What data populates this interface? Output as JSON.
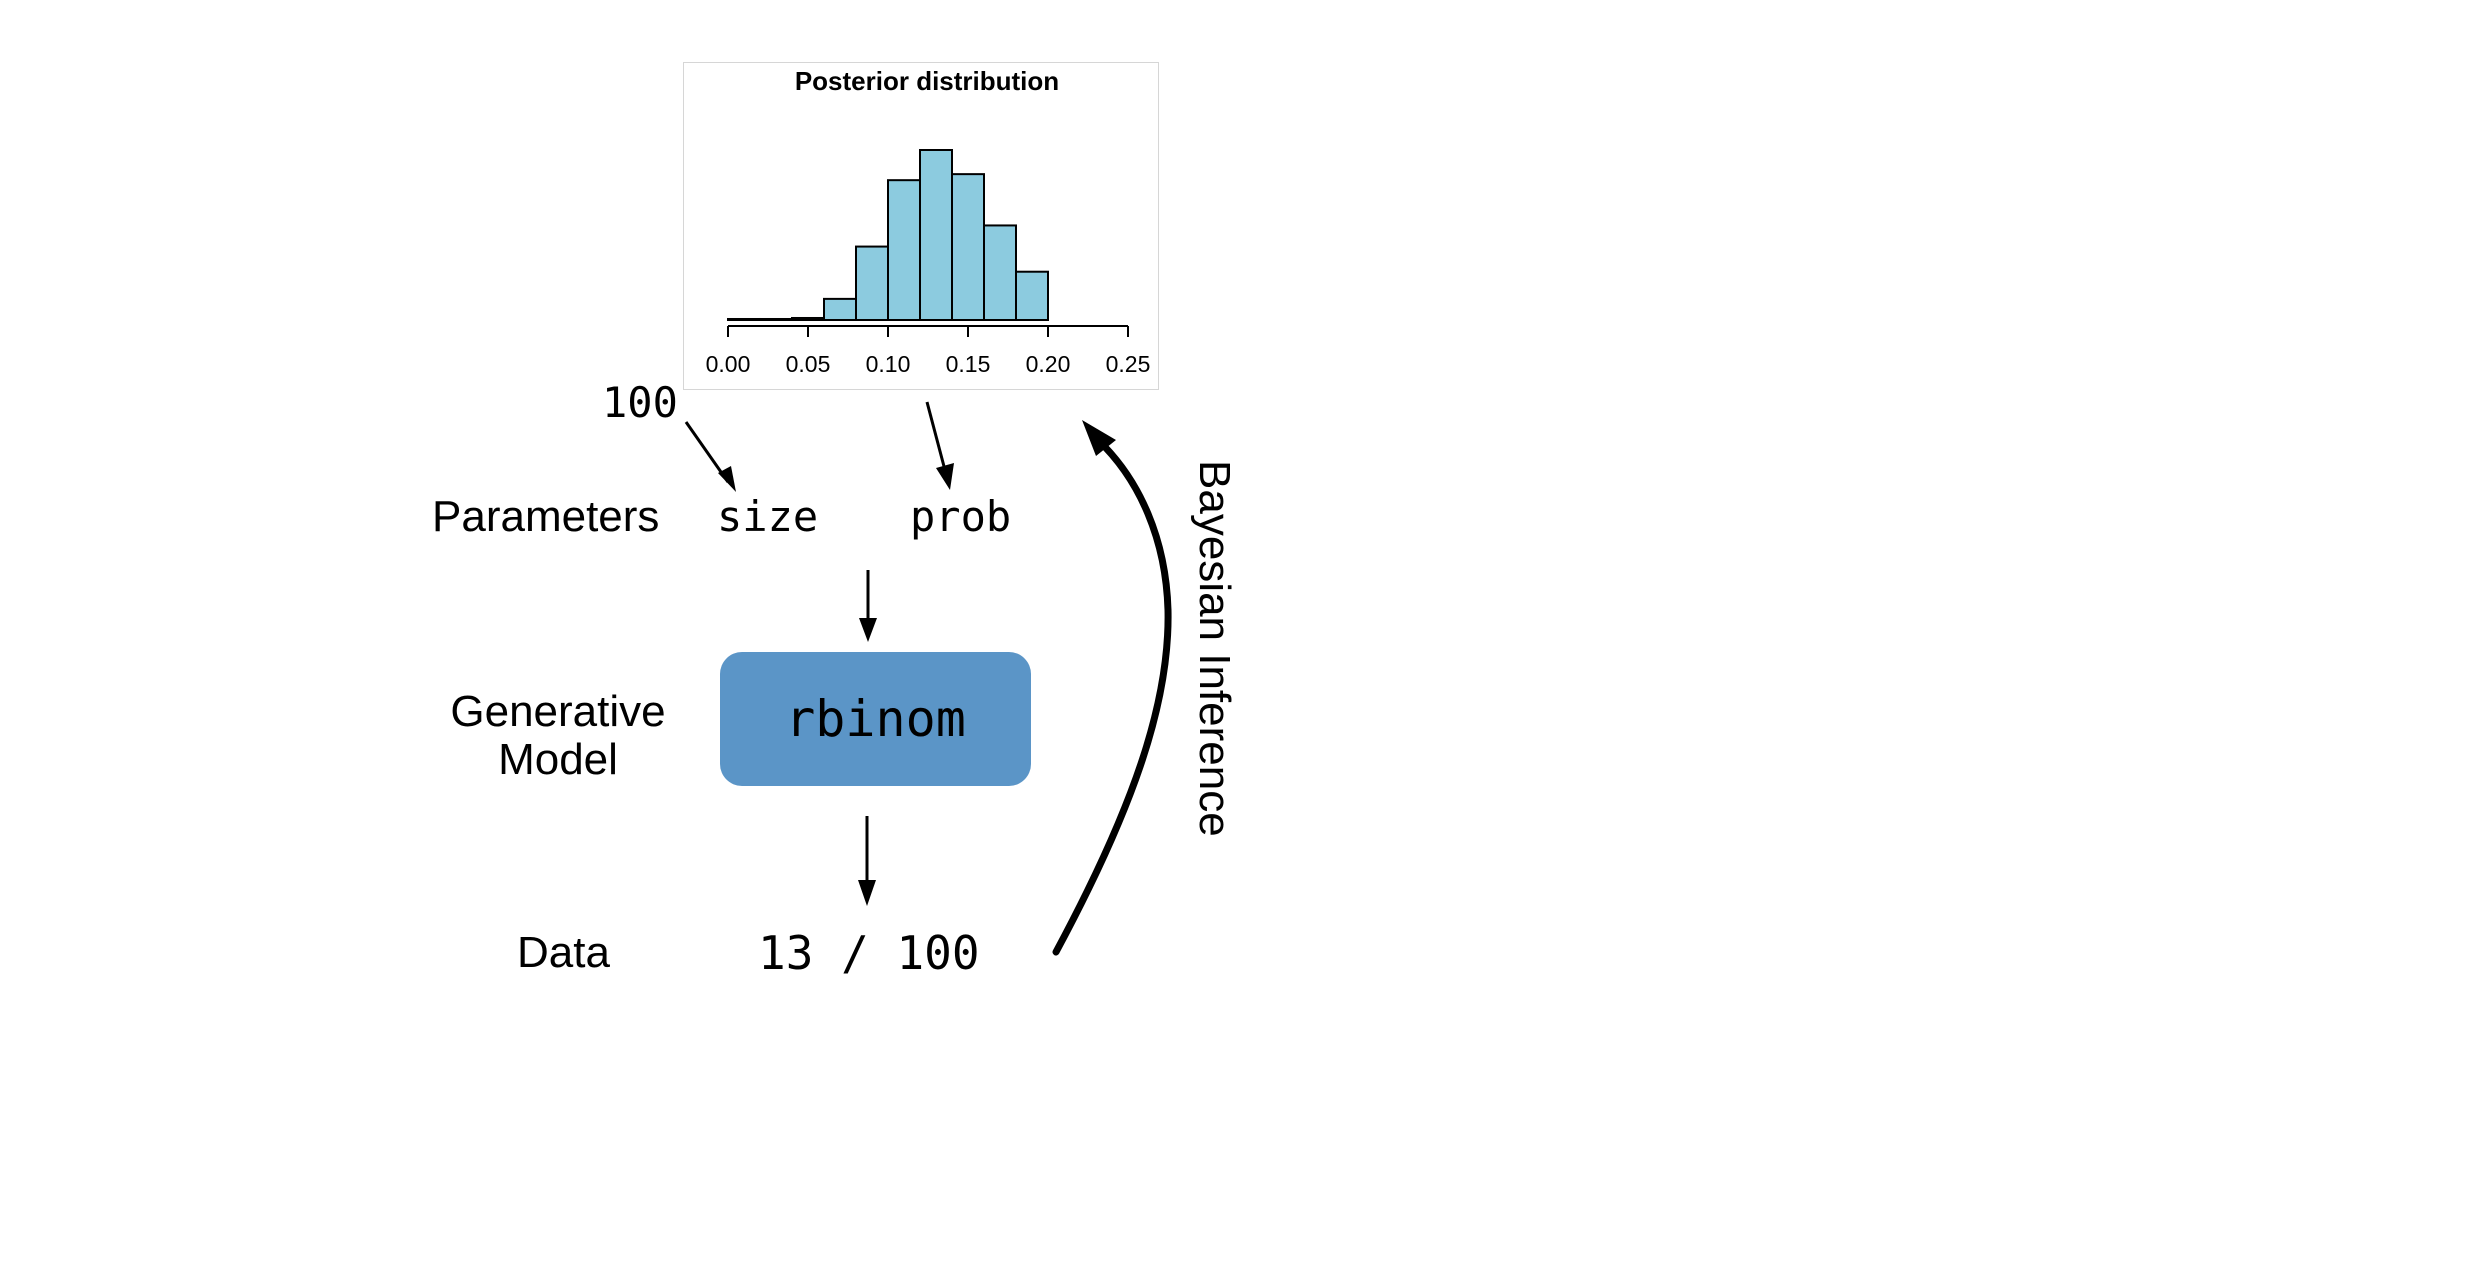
{
  "chart_data": {
    "type": "bar",
    "title": "Posterior distribution",
    "xlabel": "",
    "ylabel": "",
    "xlim": [
      0.0,
      0.25
    ],
    "x_ticks": [
      "0.00",
      "0.05",
      "0.10",
      "0.15",
      "0.20",
      "0.25"
    ],
    "bins": [
      {
        "x0": 0.0,
        "x1": 0.02,
        "count": 1
      },
      {
        "x0": 0.02,
        "x1": 0.04,
        "count": 1
      },
      {
        "x0": 0.04,
        "x1": 0.06,
        "count": 2
      },
      {
        "x0": 0.06,
        "x1": 0.08,
        "count": 21
      },
      {
        "x0": 0.08,
        "x1": 0.1,
        "count": 73
      },
      {
        "x0": 0.1,
        "x1": 0.12,
        "count": 139
      },
      {
        "x0": 0.12,
        "x1": 0.14,
        "count": 169
      },
      {
        "x0": 0.14,
        "x1": 0.16,
        "count": 145
      },
      {
        "x0": 0.16,
        "x1": 0.18,
        "count": 94
      },
      {
        "x0": 0.18,
        "x1": 0.2,
        "count": 48
      }
    ],
    "bar_color": "#8ccbdf",
    "grid": false
  },
  "diagram": {
    "size_value": "100",
    "parameters_label": "Parameters",
    "param_size": "size",
    "param_prob": "prob",
    "generative_label_line1": "Generative",
    "generative_label_line2": "Model",
    "model_name": "rbinom",
    "data_label": "Data",
    "data_value": "13 / 100",
    "inference_label": "Bayesian Inference",
    "model_color": "#5b95c7"
  }
}
